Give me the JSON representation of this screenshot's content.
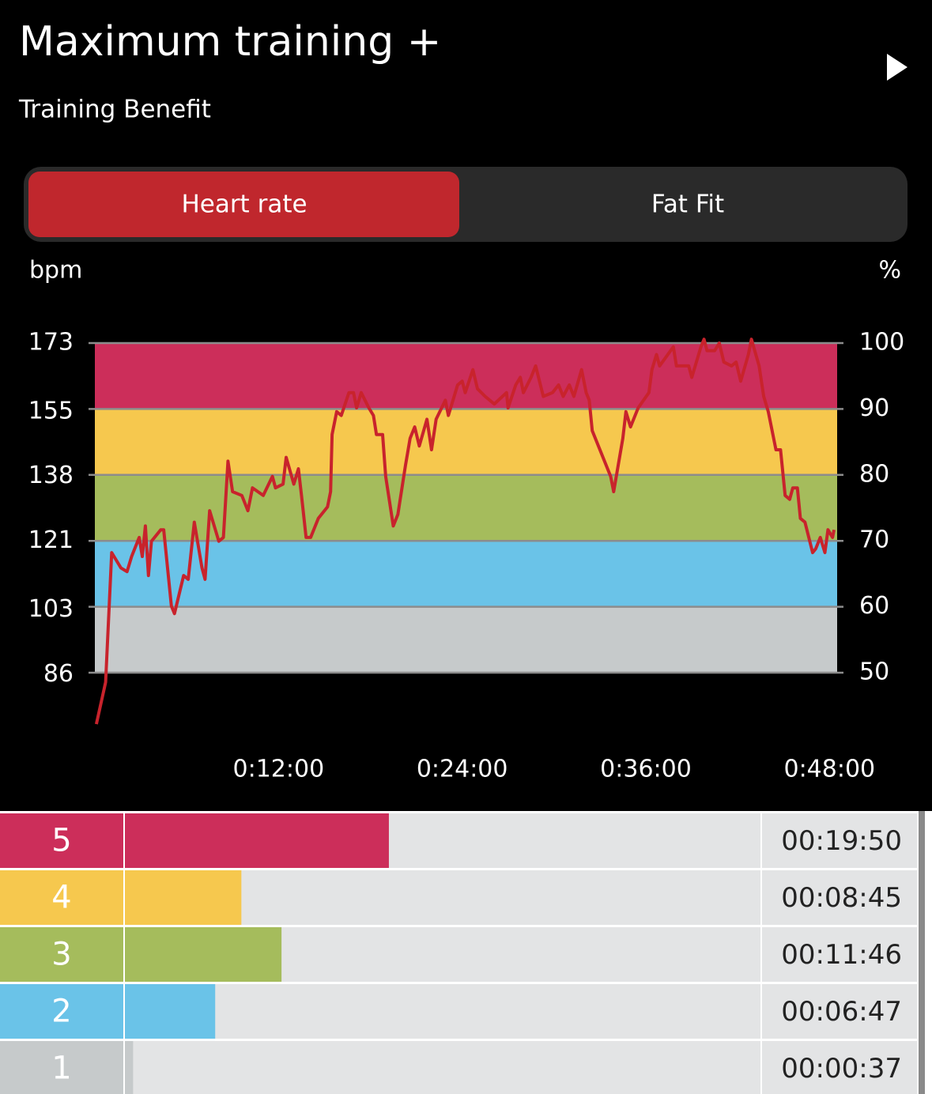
{
  "header": {
    "title": "Maximum training +",
    "subtitle": "Training Benefit"
  },
  "tabs": [
    "Heart rate",
    "Fat Fit"
  ],
  "chart_data": {
    "type": "line",
    "y_label": "bpm",
    "y2_label": "%",
    "color": "#c8232c",
    "x": [
      0.1,
      0.7,
      1.1,
      1.7,
      2.1,
      2.4,
      2.9,
      3.1,
      3.3,
      3.5,
      3.7,
      4.3,
      4.5,
      5.0,
      5.2,
      5.8,
      6.1,
      6.5,
      7.0,
      7.2,
      7.5,
      8.1,
      8.4,
      8.7,
      9.0,
      9.6,
      10.0,
      10.3,
      11.0,
      11.6,
      11.8,
      12.3,
      12.5,
      13.0,
      13.3,
      13.5,
      13.8,
      14.1,
      14.6,
      15.2,
      15.4,
      15.5,
      15.8,
      16.1,
      16.6,
      16.9,
      17.1,
      17.4,
      17.9,
      18.2,
      18.4,
      18.8,
      19.0,
      19.5,
      19.8,
      20.3,
      20.6,
      20.9,
      21.2,
      21.7,
      22.0,
      22.3,
      22.9,
      23.1,
      23.7,
      24.0,
      24.2,
      24.7,
      25.0,
      25.5,
      26.1,
      26.9,
      27.0,
      27.5,
      27.8,
      28.0,
      28.5,
      28.8,
      29.3,
      29.9,
      30.3,
      30.6,
      31.0,
      31.3,
      31.8,
      32.1,
      32.3,
      32.5,
      33.2,
      33.7,
      33.9,
      34.5,
      34.7,
      35.0,
      35.5,
      36.2,
      36.4,
      36.7,
      36.9,
      37.8,
      38.0,
      38.8,
      39.0,
      39.6,
      39.8,
      40.0,
      40.5,
      40.8,
      41.1,
      41.6,
      41.9,
      42.2,
      42.7,
      42.9,
      43.4,
      43.7,
      44.0,
      44.5,
      44.8,
      45.1,
      45.4,
      45.6,
      45.9,
      46.1,
      46.4,
      46.9,
      47.1,
      47.4,
      47.7,
      47.9,
      48.2,
      48.3
    ],
    "values": [
      73,
      84,
      118,
      114,
      113,
      117,
      122,
      117,
      125,
      112,
      121,
      124,
      124,
      104,
      102,
      112,
      111,
      126,
      114,
      111,
      129,
      121,
      122,
      142,
      134,
      133,
      129,
      135,
      133,
      138,
      135,
      136,
      143,
      136,
      140,
      133,
      122,
      122,
      127,
      130,
      134,
      149,
      155,
      154,
      160,
      160,
      156,
      160,
      156,
      154,
      149,
      149,
      138,
      125,
      128,
      141,
      148,
      151,
      146,
      153,
      145,
      153,
      158,
      154,
      162,
      163,
      160,
      166,
      161,
      159,
      157,
      160,
      156,
      162,
      164,
      160,
      164,
      167,
      159,
      160,
      162,
      159,
      162,
      159,
      166,
      160,
      158,
      150,
      143,
      138,
      134,
      148,
      155,
      151,
      156,
      160,
      166,
      170,
      167,
      172,
      167,
      167,
      164,
      172,
      174,
      171,
      171,
      173,
      168,
      167,
      168,
      163,
      170,
      174,
      167,
      159,
      155,
      145,
      145,
      133,
      132,
      135,
      135,
      127,
      126,
      118,
      119,
      122,
      118,
      124,
      122,
      124
    ],
    "xlim": [
      0,
      48.5
    ],
    "xticks": [
      {
        "value": 12,
        "label": "0:12:00"
      },
      {
        "value": 24,
        "label": "0:24:00"
      },
      {
        "value": 36,
        "label": "0:36:00"
      },
      {
        "value": 48,
        "label": "0:48:00"
      }
    ],
    "ylim": [
      86.5,
      173
    ],
    "yticks": [
      173,
      155,
      138,
      121,
      103,
      86
    ],
    "y2lim": [
      50,
      100
    ],
    "y2ticks": [
      100,
      90,
      80,
      70,
      60,
      50
    ],
    "bands": [
      "#c6cacb",
      "#6ac3e8",
      "#a5bc5c",
      "#f6c84e",
      "#cc2e5a"
    ]
  },
  "zones": [
    {
      "zone": "5",
      "time": "00:19:50",
      "color": "#cc2e5a"
    },
    {
      "zone": "4",
      "time": "00:08:45",
      "color": "#f6c84e"
    },
    {
      "zone": "3",
      "time": "00:11:46",
      "color": "#a5bc5c"
    },
    {
      "zone": "2",
      "time": "00:06:47",
      "color": "#6ac3e8"
    },
    {
      "zone": "1",
      "time": "00:00:37",
      "color": "#c6cacb"
    }
  ]
}
